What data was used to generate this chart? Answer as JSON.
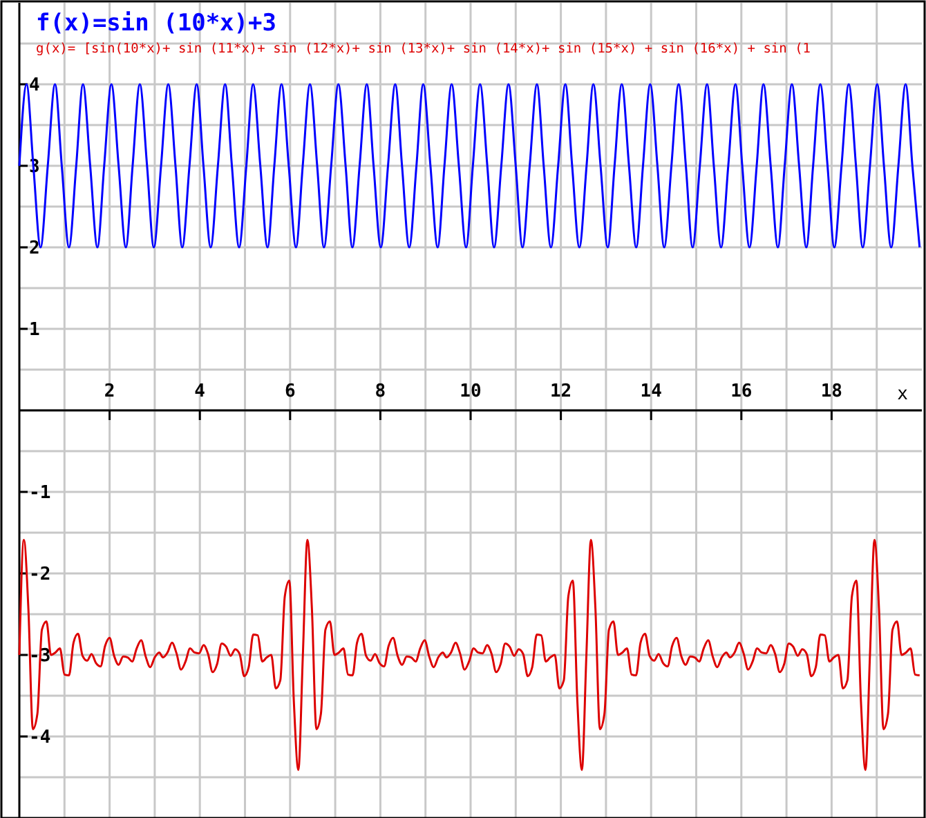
{
  "chart_data": {
    "type": "line",
    "xlabel": "x",
    "xlim": [
      0,
      20
    ],
    "ylim": [
      -5,
      5
    ],
    "xticks": [
      {
        "value": 1,
        "label": null
      },
      2,
      {
        "value": 3,
        "label": null
      },
      4,
      {
        "value": 5,
        "label": null
      },
      6,
      {
        "value": 7,
        "label": null
      },
      8,
      {
        "value": 9,
        "label": null
      },
      10,
      {
        "value": 11,
        "label": null
      },
      12,
      {
        "value": 13,
        "label": null
      },
      14,
      {
        "value": 15,
        "label": null
      },
      16,
      {
        "value": 17,
        "label": null
      },
      18,
      {
        "value": 19,
        "label": null
      }
    ],
    "yticks": [
      {
        "value": -4.5,
        "label": null
      },
      -4,
      {
        "value": -3.5,
        "label": null
      },
      -3,
      {
        "value": -2.5,
        "label": null
      },
      -2,
      {
        "value": -1.5,
        "label": null
      },
      -1,
      {
        "value": -0.5,
        "label": null
      },
      {
        "value": 0,
        "label": null
      },
      {
        "value": 0.5,
        "label": null
      },
      1,
      {
        "value": 1.5,
        "label": null
      },
      2,
      {
        "value": 2.5,
        "label": null
      },
      3,
      {
        "value": 3.5,
        "label": null
      },
      4,
      {
        "value": 4.5,
        "label": null
      }
    ],
    "grid": true,
    "legend": "top left",
    "marker": "none",
    "line_style": "solid",
    "series": [
      {
        "name": "f(x)=sin (10*x)+3",
        "color": "#0000ff",
        "x": [
          0,
          0.16,
          0.31,
          0.47,
          0.63,
          0.79,
          0.94,
          1.1,
          1.26,
          1.41,
          1.57,
          1.73,
          1.88,
          2.04,
          2.2,
          2.36,
          2.51,
          2.67,
          2.83,
          2.98,
          3.14,
          3.3,
          3.46,
          3.61,
          3.77,
          3.93,
          4.08,
          4.24,
          4.4,
          4.56,
          4.71,
          4.87,
          5.03,
          5.18,
          5.34,
          5.5,
          5.65,
          5.81,
          5.97,
          6.13,
          6.28,
          6.44,
          6.6,
          6.75,
          6.91,
          7.07,
          7.23,
          7.38,
          7.54,
          7.7,
          7.85,
          8.01,
          8.17,
          8.33,
          8.48,
          8.64,
          8.8,
          8.95,
          9.11,
          9.27,
          9.42,
          9.58,
          9.74,
          9.9,
          10.05,
          10.21,
          10.37,
          10.52,
          10.68,
          10.84,
          11.0,
          11.15,
          11.31,
          11.47,
          11.62,
          11.78,
          11.94,
          12.1,
          12.25,
          12.41,
          12.57,
          12.72,
          12.88,
          13.04,
          13.19,
          13.35,
          13.51,
          13.67,
          13.82,
          13.98,
          14.14,
          14.29,
          14.45,
          14.61,
          14.77,
          14.92,
          15.08,
          15.24,
          15.39,
          15.55,
          15.71,
          15.87,
          16.02,
          16.18,
          16.34,
          16.49,
          16.65,
          16.81,
          16.96,
          17.12,
          17.28,
          17.44,
          17.59,
          17.75,
          17.91,
          18.06,
          18.22,
          18.38,
          18.54,
          18.69,
          18.85,
          19.01,
          19.16,
          19.32,
          19.48,
          19.64,
          19.79,
          19.95
        ],
        "values": [
          3,
          4,
          3,
          2,
          3,
          4,
          3,
          2,
          3,
          4,
          3,
          2,
          3,
          4,
          3,
          2,
          3,
          4,
          3,
          2,
          3,
          4,
          3,
          2,
          3,
          4,
          3,
          2,
          3,
          4,
          3,
          2,
          3,
          4,
          3,
          2,
          3,
          4,
          3,
          2,
          3,
          4,
          3,
          2,
          3,
          4,
          3,
          2,
          3,
          4,
          3,
          2,
          3,
          4,
          3,
          2,
          3,
          4,
          3,
          2,
          3,
          4,
          3,
          2,
          3,
          4,
          3,
          2,
          3,
          4,
          3,
          2,
          3,
          4,
          3,
          2,
          3,
          4,
          3,
          2,
          3,
          4,
          3,
          2,
          3,
          4,
          3,
          2,
          3,
          4,
          3,
          2,
          3,
          4,
          3,
          2,
          3,
          4,
          3,
          2,
          3,
          4,
          3,
          2,
          3,
          4,
          3,
          2,
          3,
          4,
          3,
          2,
          3,
          4,
          3,
          2,
          3,
          4,
          3,
          2,
          3,
          4,
          3,
          2,
          3,
          4,
          3,
          2
        ]
      },
      {
        "name": "g(x)= [sin(10*x)+ sin (11*x)+ sin (12*x)+ sin (13*x)+ sin (14*x)+ sin (15*x) + sin (16*x) + sin (1",
        "color": "#dd0000",
        "x": [
          0,
          0.1,
          0.2,
          0.3,
          0.4,
          0.5,
          0.6,
          0.7,
          0.8,
          0.9,
          1.0,
          1.1,
          1.2,
          1.3,
          1.4,
          1.5,
          1.6,
          1.7,
          1.8,
          1.9,
          2.0,
          2.1,
          2.2,
          2.3,
          2.4,
          2.5,
          2.6,
          2.7,
          2.8,
          2.9,
          3.0,
          3.1,
          3.183,
          3.283,
          3.383,
          3.483,
          3.583,
          3.683,
          3.783,
          3.883,
          3.983,
          4.083,
          4.183,
          4.283,
          4.383,
          4.483,
          4.583,
          4.683,
          4.783,
          4.883,
          4.983,
          5.083,
          5.183,
          5.283,
          5.383,
          5.483,
          5.583,
          5.683,
          5.783,
          5.883,
          5.983,
          6.083,
          6.183,
          6.283,
          6.383,
          6.483,
          6.583,
          6.683,
          6.783,
          6.883,
          6.983,
          7.083,
          7.183,
          7.283,
          7.383,
          7.483,
          7.583,
          7.683,
          7.783,
          7.883,
          7.983,
          8.083,
          8.183,
          8.283,
          8.383,
          8.483,
          8.583,
          8.683,
          8.783,
          8.883,
          8.983,
          9.083,
          9.183,
          9.283,
          9.383,
          9.466,
          9.566,
          9.666,
          9.766,
          9.866,
          9.966,
          10.066,
          10.166,
          10.266,
          10.366,
          10.466,
          10.566,
          10.666,
          10.766,
          10.866,
          10.966,
          11.066,
          11.166,
          11.266,
          11.366,
          11.466,
          11.566,
          11.666,
          11.766,
          11.866,
          11.966,
          12.066,
          12.166,
          12.266,
          12.366,
          12.466,
          12.566,
          12.666,
          12.766,
          12.866,
          12.966,
          13.066,
          13.166,
          13.266,
          13.366,
          13.466,
          13.566,
          13.666,
          13.766,
          13.866,
          13.966,
          14.066,
          14.166,
          14.266,
          14.366,
          14.466,
          14.566,
          14.666,
          14.766,
          14.866,
          14.966,
          15.066,
          15.166,
          15.266,
          15.366,
          15.466,
          15.566,
          15.666,
          15.75,
          15.85,
          15.95,
          16.05,
          16.15,
          16.25,
          16.35,
          16.45,
          16.55,
          16.65,
          16.75,
          16.85,
          16.95,
          17.05,
          17.15,
          17.25,
          17.35,
          17.45,
          17.55,
          17.65,
          17.75,
          17.85,
          17.95,
          18.05,
          18.15,
          18.25,
          18.35,
          18.45,
          18.55,
          18.65,
          18.75,
          18.85,
          18.95,
          19.05,
          19.15,
          19.25,
          19.35,
          19.45,
          19.55,
          19.65,
          19.75,
          19.85,
          19.95
        ],
        "values": [
          -3,
          -1.59,
          -2.43,
          -3.91,
          -3.72,
          -2.69,
          -2.59,
          -3,
          -2.97,
          -2.92,
          -3.24,
          -3.25,
          -2.85,
          -2.74,
          -3.01,
          -3.07,
          -2.99,
          -3.1,
          -3.14,
          -2.89,
          -2.79,
          -3.01,
          -3.12,
          -3.02,
          -3.03,
          -3.08,
          -2.92,
          -2.82,
          -3.02,
          -3.15,
          -3.03,
          -2.97,
          -3.03,
          -2.97,
          -2.85,
          -2.98,
          -3.18,
          -3.08,
          -2.92,
          -2.97,
          -2.98,
          -2.88,
          -2.99,
          -3.21,
          -3.11,
          -2.86,
          -2.9,
          -3.01,
          -2.93,
          -2.99,
          -3.26,
          -3.15,
          -2.75,
          -2.76,
          -3.08,
          -3.03,
          -3,
          -3.41,
          -3.31,
          -2.28,
          -2.09,
          -3.57,
          -4.41,
          -3,
          -1.59,
          -2.43,
          -3.91,
          -3.72,
          -2.69,
          -2.59,
          -3,
          -2.97,
          -2.92,
          -3.24,
          -3.25,
          -2.85,
          -2.74,
          -3.01,
          -3.07,
          -2.99,
          -3.1,
          -3.14,
          -2.89,
          -2.79,
          -3.01,
          -3.12,
          -3.02,
          -3.03,
          -3.08,
          -2.92,
          -2.82,
          -3.02,
          -3.15,
          -3.03,
          -2.97,
          -3.03,
          -2.97,
          -2.85,
          -2.98,
          -3.18,
          -3.08,
          -2.92,
          -2.97,
          -2.98,
          -2.88,
          -2.99,
          -3.21,
          -3.11,
          -2.86,
          -2.9,
          -3.01,
          -2.93,
          -2.99,
          -3.26,
          -3.15,
          -2.75,
          -2.76,
          -3.08,
          -3.03,
          -3,
          -3.41,
          -3.31,
          -2.28,
          -2.09,
          -3.57,
          -4.41,
          -3,
          -1.59,
          -2.43,
          -3.91,
          -3.72,
          -2.69,
          -2.59,
          -3,
          -2.97,
          -2.92,
          -3.24,
          -3.25,
          -2.85,
          -2.74,
          -3.01,
          -3.07,
          -2.99,
          -3.1,
          -3.14,
          -2.89,
          -2.79,
          -3.01,
          -3.12,
          -3.02,
          -3.03,
          -3.08,
          -2.92,
          -2.82,
          -3.02,
          -3.15,
          -3.03,
          -2.97,
          -3.03,
          -2.97,
          -2.85,
          -2.98,
          -3.18,
          -3.08,
          -2.92,
          -2.97,
          -2.98,
          -2.88,
          -2.99,
          -3.21,
          -3.11,
          -2.86,
          -2.9,
          -3.01,
          -2.93,
          -2.99,
          -3.26,
          -3.15,
          -2.75,
          -2.76,
          -3.08,
          -3.03,
          -3,
          -3.41,
          -3.31,
          -2.28,
          -2.09,
          -3.57,
          -4.41,
          -3,
          -1.59,
          -2.43,
          -3.91,
          -3.72,
          -2.69,
          -2.59,
          -3,
          -2.97,
          -2.92,
          -3.24,
          -3.25
        ]
      }
    ]
  }
}
